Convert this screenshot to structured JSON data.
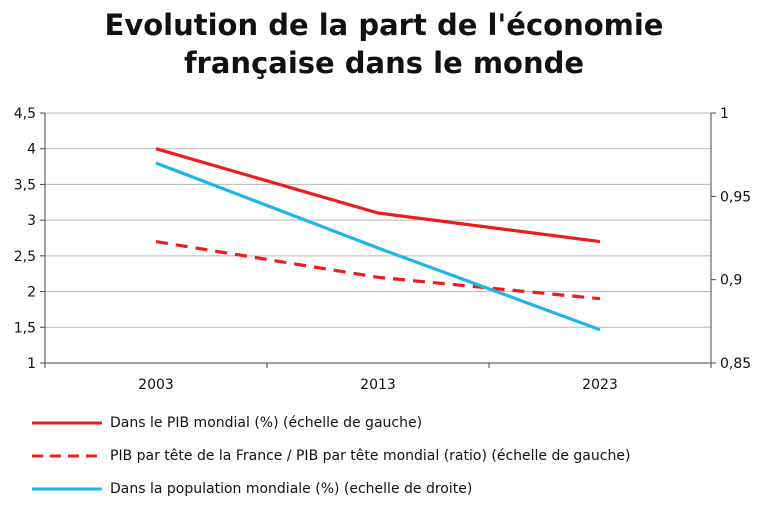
{
  "title_lines": [
    "Evolution de la part de l'économie",
    "française dans le monde"
  ],
  "colors": {
    "red": "#ee1c1c",
    "blue": "#1fb4ea",
    "axis": "#444444",
    "grid": "#b8b8b8"
  },
  "chart_data": {
    "type": "line",
    "title": "Evolution de la part de l'économie française dans le monde",
    "categories": [
      "2003",
      "2013",
      "2023"
    ],
    "left_axis": {
      "min": 1,
      "max": 4.5,
      "ticks": [
        "1",
        "1,5",
        "2",
        "2,5",
        "3",
        "3,5",
        "4",
        "4,5"
      ],
      "tick_values": [
        1,
        1.5,
        2,
        2.5,
        3,
        3.5,
        4,
        4.5
      ]
    },
    "right_axis": {
      "min": 0.85,
      "max": 1,
      "ticks": [
        "0,85",
        "0,9",
        "0,95",
        "1"
      ],
      "tick_values": [
        0.85,
        0.9,
        0.95,
        1
      ]
    },
    "grid": true,
    "legend_position": "bottom",
    "series": [
      {
        "name": "Dans le PIB mondial (%) (échelle de gauche)",
        "axis": "left",
        "style": "solid",
        "color": "#ee1c1c",
        "values": [
          4.0,
          3.1,
          2.7
        ]
      },
      {
        "name": "PIB par tête de la France / PIB par tête mondial (ratio) (échelle de gauche)",
        "axis": "left",
        "style": "dashed",
        "color": "#ee1c1c",
        "values": [
          2.7,
          2.2,
          1.9
        ]
      },
      {
        "name": "Dans la population mondiale (%) (echelle de droite)",
        "axis": "right",
        "style": "solid",
        "color": "#1fb4ea",
        "values": [
          0.97,
          0.919,
          0.87
        ]
      }
    ]
  }
}
